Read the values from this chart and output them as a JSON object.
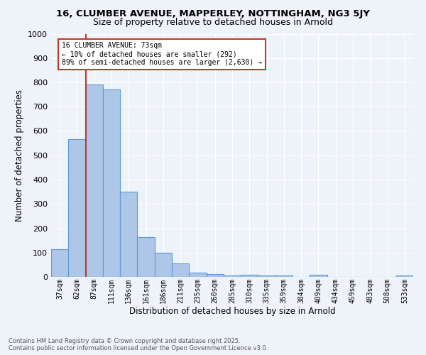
{
  "title1": "16, CLUMBER AVENUE, MAPPERLEY, NOTTINGHAM, NG3 5JY",
  "title2": "Size of property relative to detached houses in Arnold",
  "xlabel": "Distribution of detached houses by size in Arnold",
  "ylabel": "Number of detached properties",
  "categories": [
    "37sqm",
    "62sqm",
    "87sqm",
    "111sqm",
    "136sqm",
    "161sqm",
    "186sqm",
    "211sqm",
    "235sqm",
    "260sqm",
    "285sqm",
    "310sqm",
    "335sqm",
    "359sqm",
    "384sqm",
    "409sqm",
    "434sqm",
    "459sqm",
    "483sqm",
    "508sqm",
    "533sqm"
  ],
  "values": [
    115,
    567,
    790,
    770,
    350,
    163,
    100,
    55,
    18,
    13,
    5,
    10,
    5,
    5,
    0,
    8,
    0,
    0,
    0,
    0,
    5
  ],
  "bar_color": "#aec6e8",
  "bar_edge_color": "#5b9bd5",
  "vline_color": "#c0392b",
  "annotation_text": "16 CLUMBER AVENUE: 73sqm\n← 10% of detached houses are smaller (292)\n89% of semi-detached houses are larger (2,630) →",
  "annotation_box_color": "#ffffff",
  "annotation_box_edge": "#c0392b",
  "ylim": [
    0,
    1000
  ],
  "yticks": [
    0,
    100,
    200,
    300,
    400,
    500,
    600,
    700,
    800,
    900,
    1000
  ],
  "background_color": "#eef2f9",
  "grid_color": "#ffffff",
  "footer1": "Contains HM Land Registry data © Crown copyright and database right 2025.",
  "footer2": "Contains public sector information licensed under the Open Government Licence v3.0."
}
